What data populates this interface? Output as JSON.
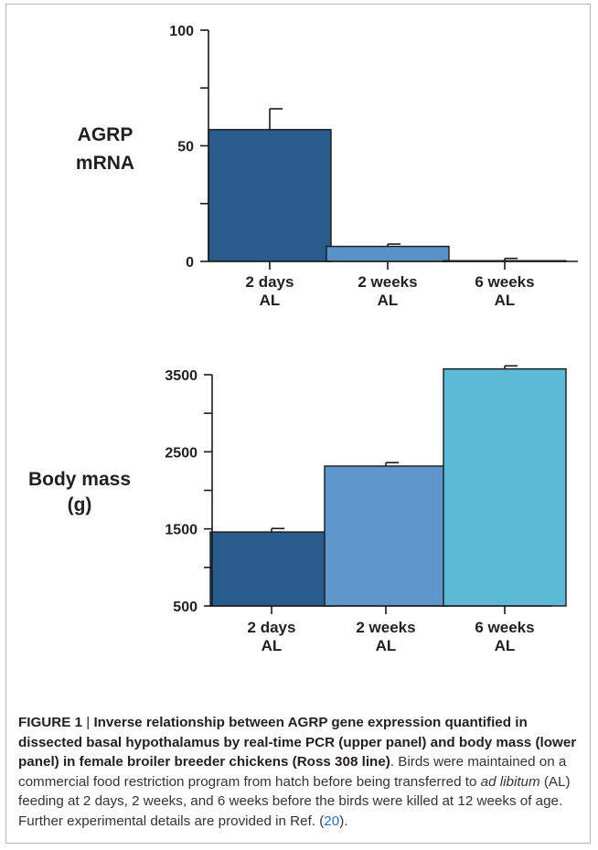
{
  "chart_data": [
    {
      "type": "bar",
      "panel": "upper",
      "ylabel_lines": [
        "AGRP",
        "mRNA"
      ],
      "categories": [
        [
          "2 days",
          "AL"
        ],
        [
          "2 weeks",
          "AL"
        ],
        [
          "6 weeks",
          "AL"
        ]
      ],
      "values": [
        57,
        6.5,
        0.3
      ],
      "errors": [
        9,
        1,
        1
      ],
      "ylim": [
        0,
        100
      ],
      "yticks": [
        0,
        50,
        100
      ],
      "colors": [
        "#2a5b8d",
        "#5991c9",
        "#5dbad6"
      ],
      "grid": false
    },
    {
      "type": "bar",
      "panel": "lower",
      "ylabel_lines": [
        "Body mass",
        "(g)"
      ],
      "categories": [
        [
          "2 days",
          "AL"
        ],
        [
          "2 weeks",
          "AL"
        ],
        [
          "6 weeks",
          "AL"
        ]
      ],
      "values": [
        1460,
        2315,
        3575
      ],
      "errors": [
        45,
        45,
        40
      ],
      "ylim": [
        500,
        3500
      ],
      "yticks": [
        500,
        1500,
        2500,
        3500
      ],
      "colors": [
        "#2a5b8d",
        "#5f97cd",
        "#5dbad6"
      ],
      "grid": false
    }
  ],
  "caption": {
    "label": "FIGURE 1",
    "separator": " | ",
    "bold_text": "Inverse relationship between AGRP gene expression quantified in dissected basal hypothalamus by real-time PCR (upper panel) and body mass (lower panel) in female broiler breeder chickens (Ross 308 line)",
    "text_before_italic": ". Birds were maintained on a commercial food restriction program from hatch before being transferred to ",
    "italic_text": "ad libitum",
    "text_after_italic": " (AL) feeding at 2 days, 2 weeks, and 6 weeks before the birds were killed at 12 weeks of age. Further experimental details are provided in Ref. (",
    "ref_number": "20",
    "text_end": ")."
  }
}
